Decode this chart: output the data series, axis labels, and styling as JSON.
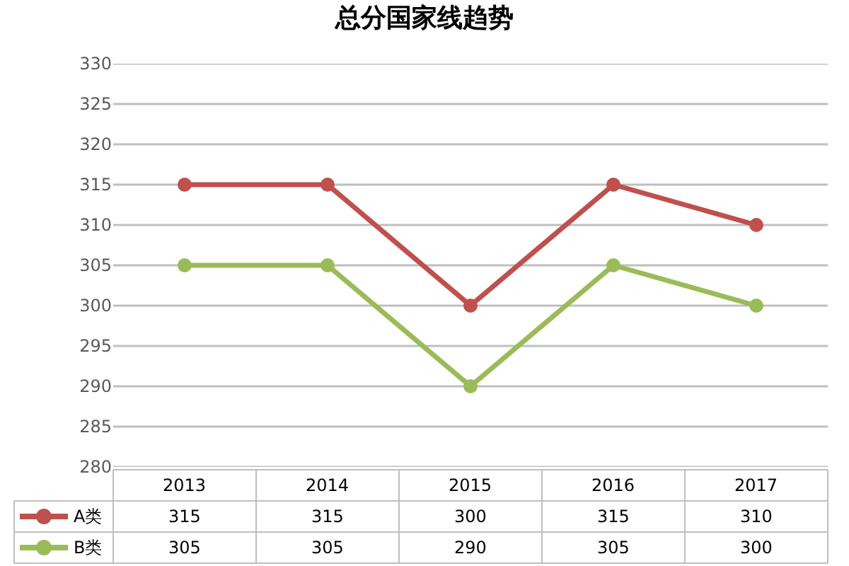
{
  "chart_data": {
    "type": "line",
    "title": "总分国家线趋势",
    "categories": [
      "2013",
      "2014",
      "2015",
      "2016",
      "2017"
    ],
    "series": [
      {
        "name": "A类",
        "color": "#c0504d",
        "values": [
          315,
          315,
          300,
          315,
          310
        ]
      },
      {
        "name": "B类",
        "color": "#9bbb59",
        "values": [
          305,
          305,
          290,
          305,
          300
        ]
      }
    ],
    "ylim": [
      280,
      330
    ],
    "yticks": [
      280,
      285,
      290,
      295,
      300,
      305,
      310,
      315,
      320,
      325,
      330
    ],
    "grid": "y",
    "marker": "circle",
    "line_style": "solid",
    "legend": "bottom",
    "data_labels": true
  }
}
